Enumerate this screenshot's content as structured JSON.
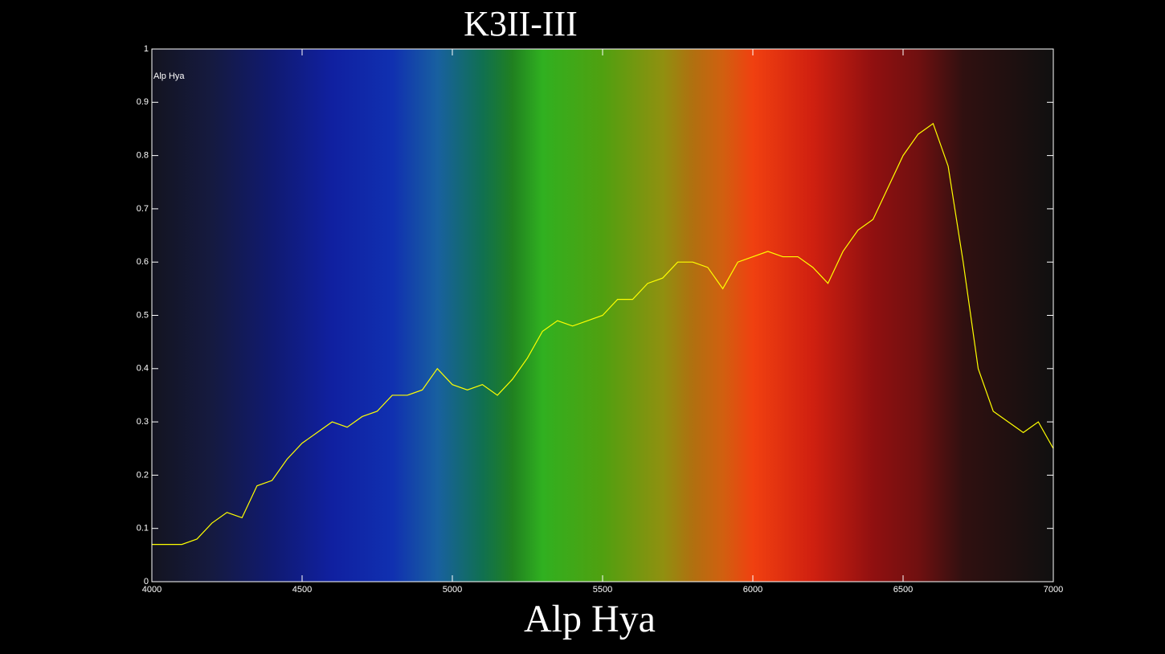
{
  "chart_data": {
    "type": "line",
    "title": "K3II-III",
    "xlabel": "Alp Hya",
    "x": [
      4000,
      4050,
      4100,
      4150,
      4200,
      4250,
      4300,
      4350,
      4400,
      4450,
      4500,
      4550,
      4600,
      4650,
      4700,
      4750,
      4800,
      4850,
      4900,
      4950,
      5000,
      5050,
      5100,
      5150,
      5200,
      5250,
      5300,
      5350,
      5400,
      5450,
      5500,
      5550,
      5600,
      5650,
      5700,
      5750,
      5800,
      5850,
      5900,
      5950,
      6000,
      6050,
      6100,
      6150,
      6200,
      6250,
      6300,
      6350,
      6400,
      6450,
      6500,
      6550,
      6600,
      6650,
      6700,
      6750,
      6800,
      6850,
      6900,
      6950,
      7000
    ],
    "series": [
      {
        "name": "Alp Hya",
        "color": "#ffff00",
        "values": [
          0.07,
          0.07,
          0.07,
          0.08,
          0.11,
          0.13,
          0.12,
          0.18,
          0.19,
          0.23,
          0.26,
          0.28,
          0.3,
          0.29,
          0.31,
          0.32,
          0.35,
          0.35,
          0.36,
          0.4,
          0.37,
          0.36,
          0.37,
          0.35,
          0.38,
          0.42,
          0.47,
          0.49,
          0.48,
          0.49,
          0.5,
          0.53,
          0.53,
          0.56,
          0.57,
          0.6,
          0.6,
          0.59,
          0.55,
          0.6,
          0.61,
          0.62,
          0.61,
          0.61,
          0.59,
          0.56,
          0.62,
          0.66,
          0.68,
          0.74,
          0.8,
          0.84,
          0.86,
          0.78,
          0.6,
          0.4,
          0.32,
          0.3,
          0.28,
          0.3,
          0.25
        ]
      }
    ],
    "xlim": [
      4000,
      7000
    ],
    "ylim": [
      0,
      1
    ],
    "xticks": [
      4000,
      4500,
      5000,
      5500,
      6000,
      6500,
      7000
    ],
    "yticks": [
      0,
      0.1,
      0.2,
      0.3,
      0.4,
      0.5,
      0.6,
      0.7,
      0.8,
      0.9,
      1
    ],
    "grid": false
  }
}
